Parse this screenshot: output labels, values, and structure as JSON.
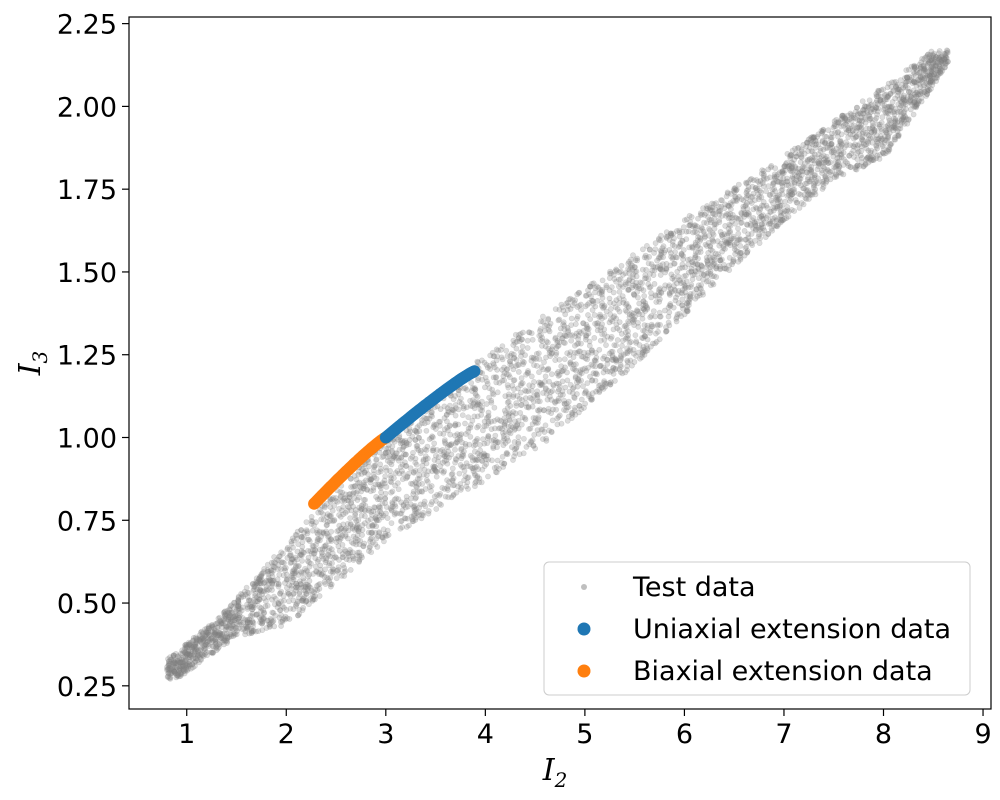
{
  "chart_data": {
    "type": "scatter",
    "title": "",
    "xlabel": "I",
    "xlabel_sub": "2",
    "ylabel": "I",
    "ylabel_sub": "3",
    "xlim": [
      0.42,
      9.08
    ],
    "ylim": [
      0.18,
      2.27
    ],
    "xticks": [
      1,
      2,
      3,
      4,
      5,
      6,
      7,
      8,
      9
    ],
    "yticks": [
      0.25,
      0.5,
      0.75,
      1.0,
      1.25,
      1.5,
      1.75,
      2.0,
      2.25
    ],
    "xtick_labels": [
      "1",
      "2",
      "3",
      "4",
      "5",
      "6",
      "7",
      "8",
      "9"
    ],
    "ytick_labels": [
      "0.25",
      "0.50",
      "0.75",
      "1.00",
      "1.25",
      "1.50",
      "1.75",
      "2.00",
      "2.25"
    ],
    "grid": false,
    "legend_position": "bottom-right",
    "series": [
      {
        "name": "Test data",
        "color": "#808080",
        "region": {
          "upper_edge": [
            [
              0.8,
              0.33
            ],
            [
              1.3,
              0.45
            ],
            [
              2.0,
              0.68
            ],
            [
              3.0,
              1.0
            ],
            [
              4.0,
              1.25
            ],
            [
              5.0,
              1.45
            ],
            [
              6.0,
              1.66
            ],
            [
              7.0,
              1.85
            ],
            [
              8.0,
              2.06
            ],
            [
              8.5,
              2.17
            ]
          ],
          "lower_edge": [
            [
              0.9,
              0.27
            ],
            [
              1.5,
              0.4
            ],
            [
              2.0,
              0.43
            ],
            [
              3.0,
              0.69
            ],
            [
              4.5,
              0.96
            ],
            [
              5.5,
              1.22
            ],
            [
              6.5,
              1.52
            ],
            [
              7.5,
              1.78
            ],
            [
              8.0,
              1.84
            ],
            [
              8.65,
              2.13
            ]
          ],
          "point_count": 4500
        }
      },
      {
        "name": "Uniaxial extension data",
        "color": "#1f77b4",
        "curve": {
          "x_range": [
            3.0,
            3.89
          ],
          "y_range": [
            1.0,
            1.2
          ],
          "point_count": 60
        }
      },
      {
        "name": "Biaxial extension data",
        "color": "#ff7f0e",
        "curve": {
          "x_range": [
            2.28,
            3.0
          ],
          "y_range": [
            0.8,
            1.0
          ],
          "point_count": 60
        }
      }
    ]
  }
}
